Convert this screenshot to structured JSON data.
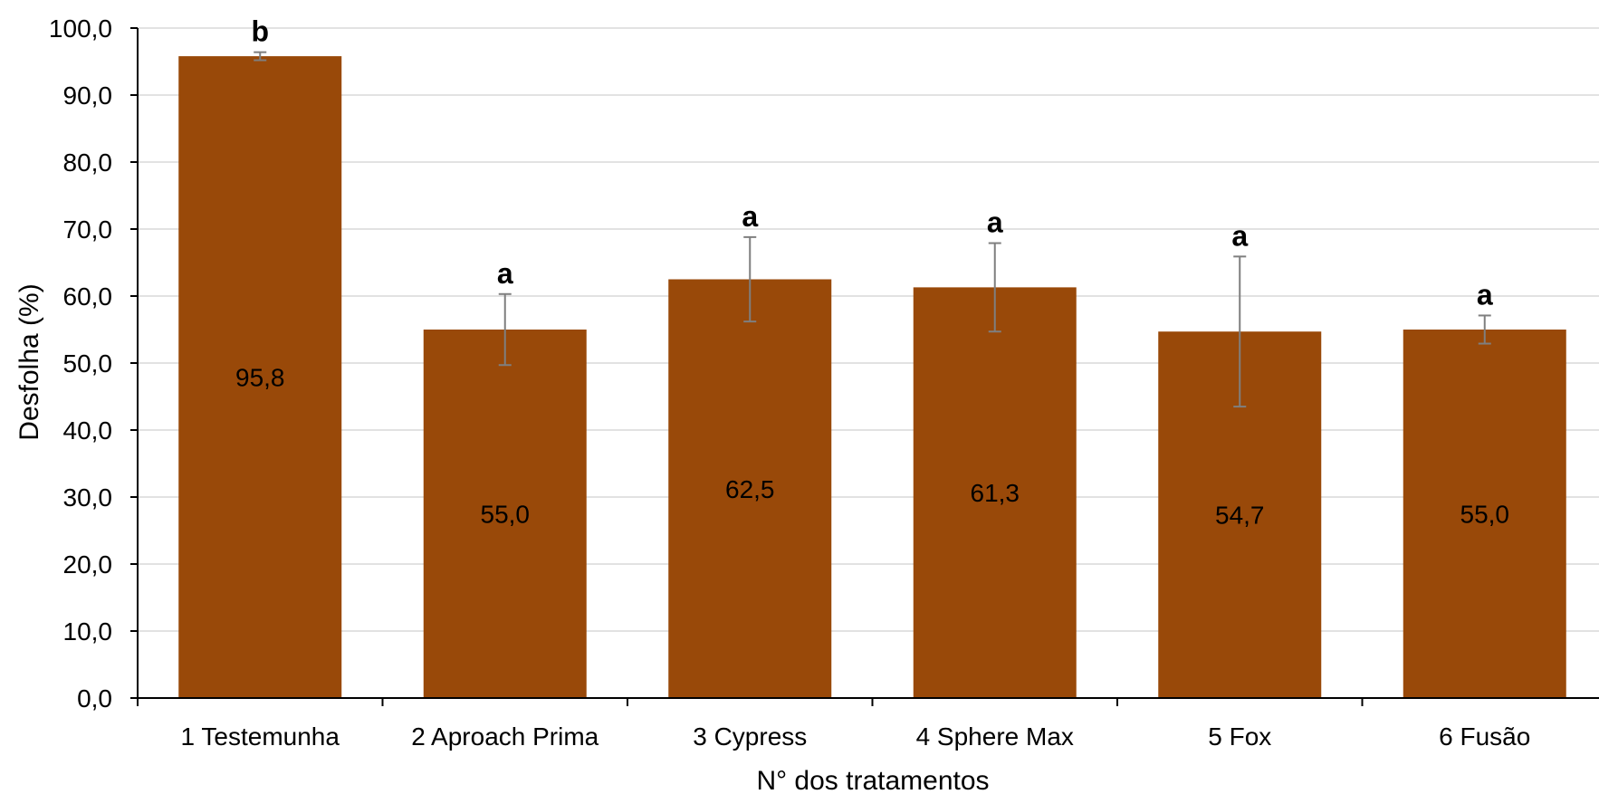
{
  "chart_data": {
    "type": "bar",
    "title": "",
    "xlabel": "N° dos tratamentos",
    "ylabel": "Desfolha (%)",
    "ylim": [
      0,
      100
    ],
    "ytick_step": 10,
    "ytick_labels": [
      "0,0",
      "10,0",
      "20,0",
      "30,0",
      "40,0",
      "50,0",
      "60,0",
      "70,0",
      "80,0",
      "90,0",
      "100,0"
    ],
    "grid": true,
    "legend": "none",
    "categories": [
      "1 Testemunha",
      "2 Aproach Prima",
      "3 Cypress",
      "4 Sphere Max",
      "5 Fox",
      "6 Fusão"
    ],
    "values": [
      95.8,
      55.0,
      62.5,
      61.3,
      54.7,
      55.0
    ],
    "value_labels": [
      "95,8",
      "55,0",
      "62,5",
      "61,3",
      "54,7",
      "55,0"
    ],
    "error": [
      0.6,
      5.3,
      6.3,
      6.6,
      11.2,
      2.1
    ],
    "significance_letters": [
      "b",
      "a",
      "a",
      "a",
      "a",
      "a"
    ],
    "colors": {
      "bar": "#994909",
      "grid": "#d9d9d9",
      "axis": "#000000",
      "error_bar": "#7f7f7f"
    }
  }
}
